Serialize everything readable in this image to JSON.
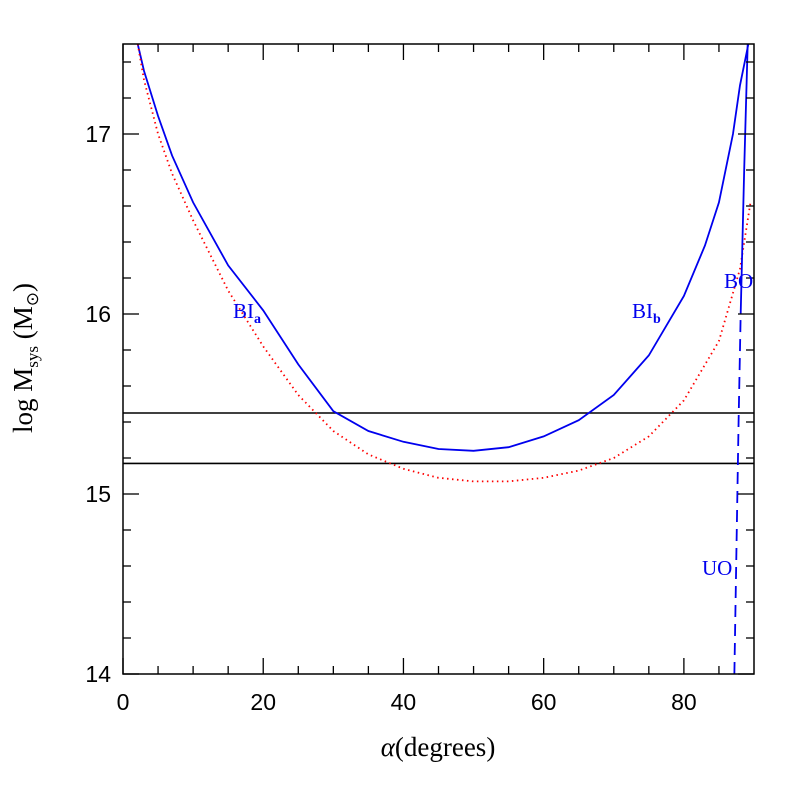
{
  "chart_data": {
    "type": "line",
    "xlabel_symbol": "α",
    "xlabel": "(degrees)",
    "ylabel": [
      {
        "text": "log M"
      },
      {
        "text": "sys",
        "sub": true
      },
      {
        "text": " (M"
      },
      {
        "text": "⊙",
        "sub": true
      },
      {
        "text": ")"
      }
    ],
    "xlim": [
      0,
      90
    ],
    "ylim": [
      14,
      17.5
    ],
    "xticks": [
      0,
      20,
      40,
      60,
      80
    ],
    "yticks": [
      14,
      15,
      16,
      17
    ],
    "xminorticks": [
      5,
      10,
      15,
      25,
      30,
      35,
      45,
      50,
      55,
      65,
      70,
      75,
      85
    ],
    "yminorticks": [
      14.2,
      14.4,
      14.6,
      14.8,
      15.2,
      15.4,
      15.6,
      15.8,
      16.2,
      16.4,
      16.6,
      16.8,
      17.2,
      17.4
    ],
    "hlines": [
      15.45,
      15.17
    ],
    "hline_color": "#000000",
    "series": [
      {
        "color": "#0000ee",
        "style": "solid",
        "x": [
          2.1,
          3,
          5,
          7,
          10,
          15,
          20,
          25,
          30,
          35,
          40,
          45,
          50,
          55,
          60,
          65,
          70,
          75,
          80,
          83,
          85,
          87,
          88,
          89.2
        ],
        "values": [
          17.5,
          17.35,
          17.1,
          16.88,
          16.62,
          16.27,
          16.02,
          15.72,
          15.46,
          15.35,
          15.29,
          15.25,
          15.24,
          15.26,
          15.32,
          15.41,
          15.55,
          15.77,
          16.1,
          16.38,
          16.62,
          17.0,
          17.27,
          17.5
        ]
      },
      {
        "color": "#ff0000",
        "style": "dotted",
        "x": [
          2.1,
          3,
          5,
          7,
          10,
          15,
          20,
          25,
          30,
          35,
          40,
          45,
          50,
          55,
          60,
          65,
          70,
          75,
          80,
          85,
          88,
          89.5
        ],
        "values": [
          17.5,
          17.3,
          17.0,
          16.78,
          16.52,
          16.13,
          15.82,
          15.55,
          15.35,
          15.22,
          15.14,
          15.09,
          15.07,
          15.07,
          15.09,
          15.13,
          15.2,
          15.32,
          15.52,
          15.85,
          16.25,
          16.62
        ]
      },
      {
        "color": "#0000ee",
        "style": "dashed",
        "x": [
          87.2,
          87.5,
          87.8,
          88.1
        ],
        "values": [
          14,
          14.7,
          15.4,
          16.0
        ]
      },
      {
        "color": "#0000ee",
        "style": "solid",
        "x": [
          88.1,
          88.6,
          89.1
        ],
        "values": [
          16.0,
          16.8,
          17.5
        ]
      }
    ],
    "annotations": [
      {
        "text": "BI",
        "sub": "a"
      },
      {
        "text": "BI",
        "sub": "b"
      },
      {
        "text": "BO"
      },
      {
        "text": "UO"
      }
    ]
  }
}
